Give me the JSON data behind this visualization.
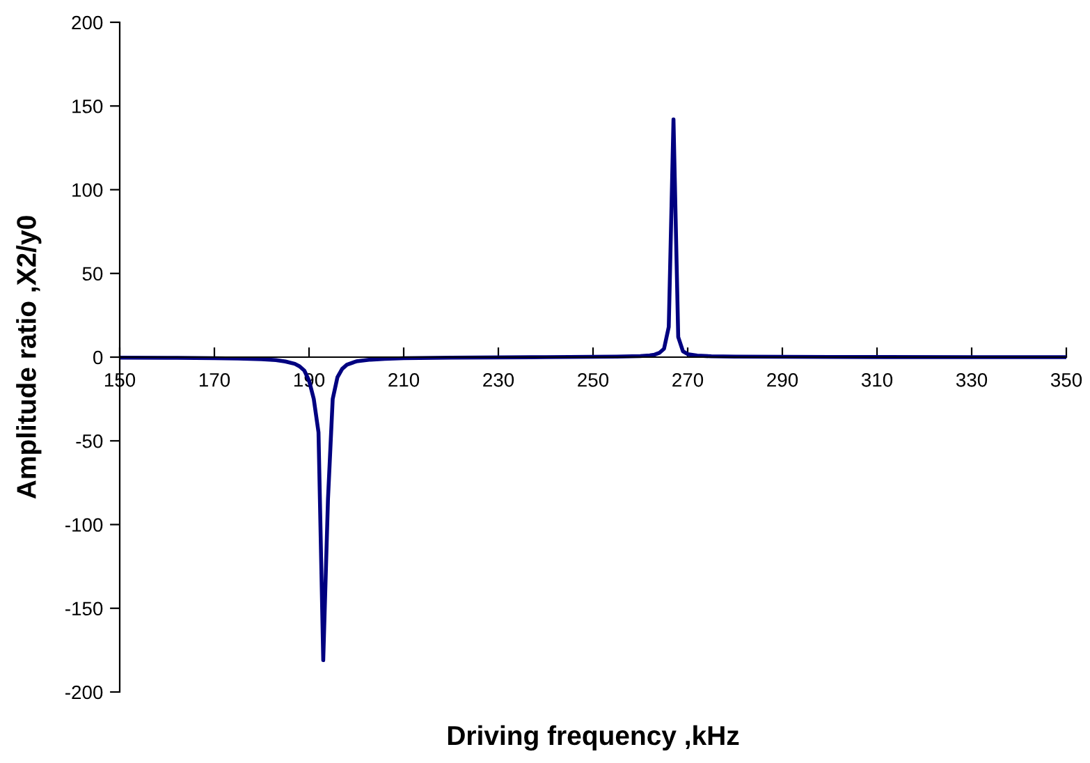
{
  "chart_data": {
    "type": "line",
    "xlabel": "Driving frequency ,kHz",
    "ylabel": "Amplitude ratio ,X2/y0",
    "xlim": [
      150,
      350
    ],
    "xticks": [
      150,
      170,
      190,
      210,
      230,
      250,
      270,
      290,
      310,
      330,
      350
    ],
    "ylim": [
      -200,
      200
    ],
    "yticks": [
      -200,
      -150,
      -100,
      -50,
      0,
      50,
      100,
      150,
      200
    ],
    "grid": false,
    "legend": false,
    "marker": "none",
    "line_style": "solid",
    "series": [
      {
        "color": "#000080",
        "x": [
          150,
          160,
          170,
          175,
          180,
          183,
          185,
          187,
          188,
          189,
          190,
          191,
          192,
          193,
          194,
          195,
          196,
          197,
          198,
          200,
          203,
          206,
          210,
          220,
          240,
          255,
          260,
          262,
          263,
          264,
          265,
          266,
          267,
          268,
          269,
          270,
          272,
          275,
          280,
          300,
          330,
          350
        ],
        "values": [
          -0.3,
          -0.4,
          -0.6,
          -0.8,
          -1.2,
          -1.8,
          -2.6,
          -4,
          -5.5,
          -8,
          -14,
          -25,
          -45,
          -181,
          -85,
          -25,
          -12,
          -7,
          -4.5,
          -2.5,
          -1.5,
          -1,
          -0.6,
          -0.3,
          0,
          0.3,
          0.6,
          1,
          1.5,
          2.5,
          5,
          18,
          142,
          12,
          3.5,
          1.8,
          0.9,
          0.5,
          0.3,
          0.1,
          0,
          0
        ]
      }
    ]
  }
}
